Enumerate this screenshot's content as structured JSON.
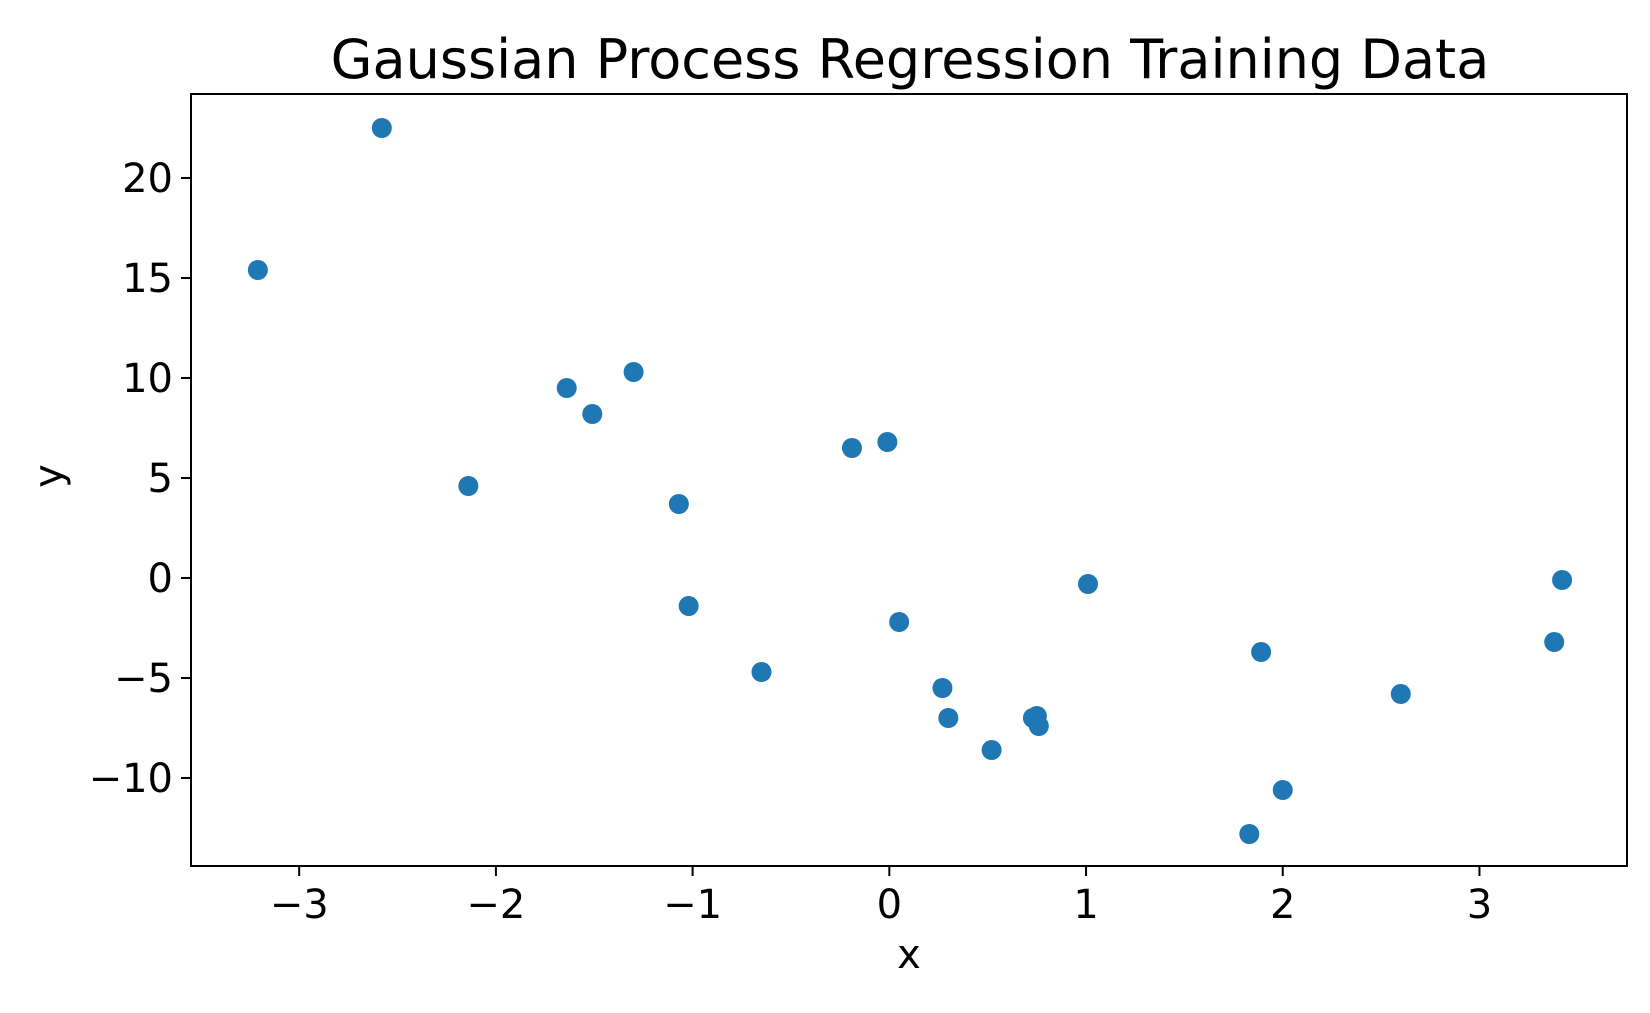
{
  "chart_data": {
    "type": "scatter",
    "title": "Gaussian Process Regression Training Data",
    "xlabel": "x",
    "ylabel": "y",
    "xlim": [
      -3.55,
      3.75
    ],
    "ylim": [
      -14.4,
      24.2
    ],
    "grid": false,
    "legend": "none",
    "colors": {
      "points": "#1f77b4"
    },
    "x_ticks": [
      {
        "value": -3,
        "label": "−3"
      },
      {
        "value": -2,
        "label": "−2"
      },
      {
        "value": -1,
        "label": "−1"
      },
      {
        "value": 0,
        "label": "0"
      },
      {
        "value": 1,
        "label": "1"
      },
      {
        "value": 2,
        "label": "2"
      },
      {
        "value": 3,
        "label": "3"
      }
    ],
    "y_ticks": [
      {
        "value": -10,
        "label": "−10"
      },
      {
        "value": -5,
        "label": "−5"
      },
      {
        "value": 0,
        "label": "0"
      },
      {
        "value": 5,
        "label": "5"
      },
      {
        "value": 10,
        "label": "10"
      },
      {
        "value": 15,
        "label": "15"
      },
      {
        "value": 20,
        "label": "20"
      }
    ],
    "points": [
      {
        "x": -3.21,
        "y": 15.4
      },
      {
        "x": -2.58,
        "y": 22.5
      },
      {
        "x": -2.14,
        "y": 4.6
      },
      {
        "x": -1.64,
        "y": 9.5
      },
      {
        "x": -1.51,
        "y": 8.2
      },
      {
        "x": -1.3,
        "y": 10.3
      },
      {
        "x": -1.07,
        "y": 3.7
      },
      {
        "x": -1.02,
        "y": -1.4
      },
      {
        "x": -0.65,
        "y": -4.7
      },
      {
        "x": -0.19,
        "y": 6.5
      },
      {
        "x": -0.01,
        "y": 6.8
      },
      {
        "x": 0.05,
        "y": -2.2
      },
      {
        "x": 0.27,
        "y": -5.5
      },
      {
        "x": 0.3,
        "y": -7.0
      },
      {
        "x": 0.52,
        "y": -8.6
      },
      {
        "x": 0.73,
        "y": -7.0
      },
      {
        "x": 0.75,
        "y": -6.9
      },
      {
        "x": 0.76,
        "y": -7.4
      },
      {
        "x": 1.01,
        "y": -0.3
      },
      {
        "x": 1.83,
        "y": -12.8
      },
      {
        "x": 1.89,
        "y": -3.7
      },
      {
        "x": 2.0,
        "y": -10.6
      },
      {
        "x": 2.6,
        "y": -5.8
      },
      {
        "x": 3.38,
        "y": -3.2
      },
      {
        "x": 3.42,
        "y": -0.1
      }
    ]
  }
}
